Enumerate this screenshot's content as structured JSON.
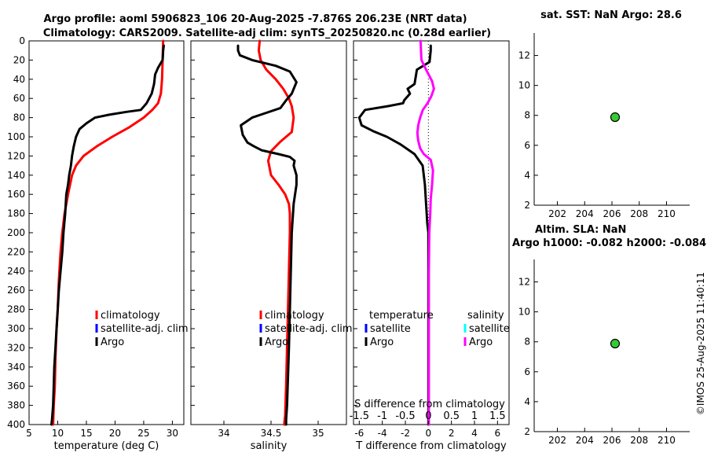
{
  "header": {
    "title1": "Argo profile: aoml 5906823_106 20-Aug-2025 -7.876S 206.23E (NRT data)",
    "title2": "Climatology: CARS2009. Satellite-adj clim: synTS_20250820.nc (0.28d earlier)"
  },
  "stamp": "©IMOS 25-Aug-2025 11:40:11",
  "colors": {
    "argo": "#000000",
    "climatology": "#ff0000",
    "satellite_adj": "#0000ff",
    "salinity_diff": "#ff00ff",
    "salinity_sat": "#00ffff",
    "marker_fill": "#33cc33"
  },
  "chart_data": [
    {
      "id": "temperature",
      "type": "line",
      "xlabel": "temperature (deg C)",
      "ylabel": "",
      "xlim": [
        5,
        32
      ],
      "ylim": [
        400,
        0
      ],
      "xticks": [
        5,
        10,
        15,
        20,
        25,
        30
      ],
      "xtick_labels": [
        "5",
        "10",
        "15",
        "20",
        "25",
        "30"
      ],
      "yticks": [
        0,
        20,
        40,
        60,
        80,
        100,
        120,
        140,
        160,
        180,
        200,
        220,
        240,
        260,
        280,
        300,
        320,
        340,
        360,
        380,
        400
      ],
      "ytick_labels": [
        "0",
        "20",
        "40",
        "60",
        "80",
        "100",
        "120",
        "140",
        "160",
        "180",
        "200",
        "220",
        "240",
        "260",
        "280",
        "300",
        "320",
        "340",
        "360",
        "380",
        "400"
      ],
      "legend": [
        "climatology",
        "satellite-adj. clim",
        "Argo"
      ],
      "legend_position": "lower-right",
      "series": [
        {
          "name": "climatology",
          "color": "#ff0000",
          "x": [
            28.4,
            28.3,
            28.2,
            28.0,
            27.5,
            26.5,
            25.0,
            22.5,
            19.5,
            16.8,
            14.5,
            13.2,
            12.5,
            11.8,
            11.2,
            10.8,
            10.5,
            10.2,
            10.0,
            9.8,
            9.6,
            9.5,
            9.3,
            9.2
          ],
          "y": [
            0,
            20,
            40,
            55,
            65,
            72,
            80,
            90,
            100,
            110,
            120,
            130,
            140,
            160,
            180,
            200,
            220,
            250,
            280,
            300,
            330,
            360,
            380,
            400
          ]
        },
        {
          "name": "Argo",
          "color": "#000000",
          "x": [
            28.5,
            28.4,
            28.3,
            27.5,
            27.0,
            26.8,
            26.4,
            25.5,
            24.5,
            22.0,
            19.0,
            16.5,
            15.0,
            13.8,
            13.2,
            12.8,
            12.5,
            12.3,
            12.0,
            11.8,
            11.5,
            11.3,
            11.0,
            10.8,
            10.5,
            10.2,
            10.0,
            9.8,
            9.6,
            9.4,
            9.3,
            9.2,
            9.0,
            8.9
          ],
          "y": [
            5,
            10,
            20,
            28,
            35,
            45,
            55,
            65,
            72,
            74,
            77,
            80,
            86,
            92,
            100,
            110,
            120,
            130,
            140,
            150,
            160,
            180,
            200,
            220,
            240,
            260,
            280,
            300,
            320,
            340,
            360,
            380,
            395,
            400
          ]
        }
      ]
    },
    {
      "id": "salinity",
      "type": "line",
      "xlabel": "salinity",
      "ylabel": "",
      "xlim": [
        33.65,
        35.3
      ],
      "ylim": [
        400,
        0
      ],
      "xticks": [
        34,
        34.5,
        35
      ],
      "xtick_labels": [
        "34",
        "34.5",
        "35"
      ],
      "legend": [
        "climatology",
        "satellite-adj. clim",
        "Argo"
      ],
      "legend_position": "lower-right",
      "series": [
        {
          "name": "climatology",
          "color": "#ff0000",
          "x": [
            34.38,
            34.37,
            34.39,
            34.45,
            34.55,
            34.63,
            34.69,
            34.72,
            34.74,
            34.72,
            34.6,
            34.5,
            34.47,
            34.5,
            34.58,
            34.65,
            34.69,
            34.7,
            34.7,
            34.69,
            34.68,
            34.67,
            34.66,
            34.65,
            34.64
          ],
          "y": [
            0,
            10,
            20,
            30,
            40,
            50,
            60,
            68,
            80,
            95,
            105,
            115,
            125,
            140,
            150,
            160,
            170,
            180,
            200,
            240,
            280,
            320,
            360,
            390,
            400
          ]
        },
        {
          "name": "Argo",
          "color": "#000000",
          "x": [
            34.15,
            34.15,
            34.17,
            34.3,
            34.55,
            34.7,
            34.77,
            34.72,
            34.66,
            34.6,
            34.45,
            34.3,
            34.18,
            34.2,
            34.25,
            34.32,
            34.4,
            34.58,
            34.7,
            34.75,
            34.74,
            34.77,
            34.77,
            34.74,
            34.72,
            34.71,
            34.7,
            34.69,
            34.68,
            34.67,
            34.66,
            34.66
          ],
          "y": [
            5,
            10,
            15,
            20,
            26,
            32,
            43,
            55,
            62,
            70,
            75,
            80,
            88,
            98,
            106,
            110,
            114,
            118,
            121,
            125,
            130,
            140,
            150,
            170,
            200,
            240,
            280,
            320,
            350,
            380,
            395,
            400
          ]
        }
      ]
    },
    {
      "id": "difference",
      "type": "line",
      "xlabel": "T difference from climatology",
      "secondary_xlabel": "S difference from climatology",
      "ylabel": "",
      "xlim": [
        -6.5,
        7
      ],
      "ylim": [
        400,
        0
      ],
      "xticks": [
        -6,
        -4,
        -2,
        0,
        2,
        4,
        6
      ],
      "xtick_labels": [
        "-6",
        "-4",
        "-2",
        "0",
        "2",
        "4",
        "6"
      ],
      "secondary_xticks": [
        -1.5,
        -1,
        -0.5,
        0,
        0.5,
        1,
        1.5
      ],
      "secondary_xtick_labels": [
        "-1.5",
        "-1",
        "-0.5",
        "0",
        "0.5",
        "1",
        "1.5"
      ],
      "legend_temperature_title": "temperature",
      "legend_temperature": [
        "satellite",
        "Argo"
      ],
      "legend_salinity_title": "salinity",
      "legend_salinity": [
        "satellite",
        "Argo"
      ],
      "series": [
        {
          "name": "T difference Argo",
          "color": "#000000",
          "x": [
            0.2,
            0.2,
            0.1,
            -1.0,
            -1.2,
            -1.8,
            -1.6,
            -2.1,
            -2.2,
            -3.5,
            -5.5,
            -6.0,
            -5.8,
            -4.8,
            -3.6,
            -2.4,
            -1.2,
            -0.5,
            -0.3,
            -0.2,
            -0.1,
            0,
            0,
            0,
            0,
            0,
            0,
            0
          ],
          "y": [
            5,
            10,
            22,
            30,
            45,
            50,
            55,
            62,
            65,
            68,
            72,
            80,
            88,
            94,
            100,
            108,
            118,
            130,
            150,
            170,
            190,
            200,
            240,
            280,
            320,
            360,
            390,
            400
          ]
        },
        {
          "name": "S difference Argo",
          "color": "#ff00ff",
          "x": [
            -0.17,
            -0.16,
            -0.15,
            -0.05,
            0.08,
            0.12,
            0.06,
            -0.02,
            -0.12,
            -0.18,
            -0.22,
            -0.24,
            -0.22,
            -0.18,
            -0.1,
            0.05,
            0.1,
            0.08,
            0.05,
            0.04,
            0.02,
            0.01,
            0.01,
            0.01,
            0.01,
            0.01,
            0.01,
            0.01
          ],
          "y": [
            0,
            10,
            20,
            30,
            42,
            50,
            58,
            65,
            72,
            80,
            88,
            96,
            104,
            112,
            118,
            124,
            135,
            150,
            165,
            180,
            200,
            240,
            280,
            320,
            350,
            380,
            395,
            400
          ]
        }
      ]
    },
    {
      "id": "sst",
      "type": "scatter",
      "title": "sat. SST: NaN Argo: 28.6",
      "xlim": [
        200.3,
        211.7
      ],
      "ylim": [
        2,
        13.5
      ],
      "xticks": [
        202,
        204,
        206,
        208,
        210
      ],
      "xtick_labels": [
        "202",
        "204",
        "206",
        "208",
        "210"
      ],
      "yticks": [
        2,
        4,
        6,
        8,
        10,
        12
      ],
      "ytick_labels": [
        "2",
        "4",
        "6",
        "8",
        "10",
        "12"
      ],
      "points": [
        {
          "x": 206.23,
          "y": 7.88
        }
      ]
    },
    {
      "id": "sla",
      "type": "scatter",
      "title": "Altim. SLA: NaN",
      "subtitle": "Argo h1000: -0.082 h2000: -0.084",
      "xlim": [
        200.3,
        211.7
      ],
      "ylim": [
        2,
        13.5
      ],
      "xticks": [
        202,
        204,
        206,
        208,
        210
      ],
      "xtick_labels": [
        "202",
        "204",
        "206",
        "208",
        "210"
      ],
      "yticks": [
        2,
        4,
        6,
        8,
        10,
        12
      ],
      "ytick_labels": [
        "2",
        "4",
        "6",
        "8",
        "10",
        "12"
      ],
      "points": [
        {
          "x": 206.23,
          "y": 7.88
        }
      ]
    }
  ]
}
